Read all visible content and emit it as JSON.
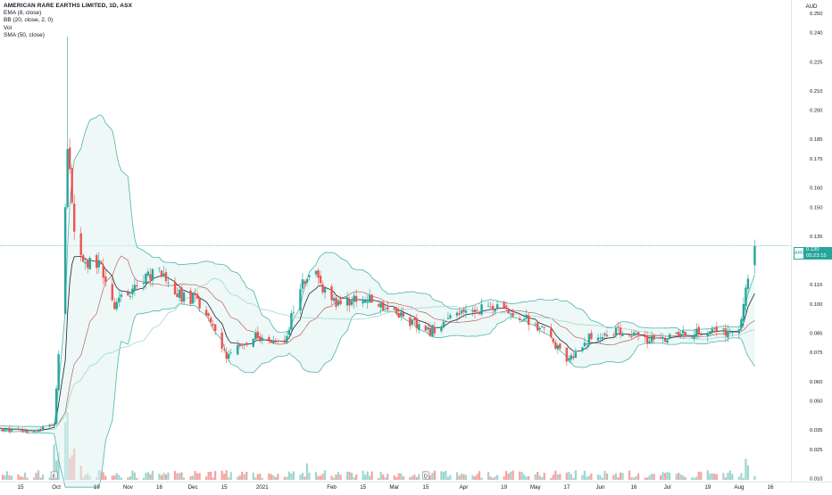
{
  "legend": {
    "title": "AMERICAN RARE EARTHS LIMITED, 1D, ASX",
    "indicators": [
      "EMA (8, close)",
      "BB (20, close, 2, 0)",
      "Vol",
      "SMA (50, close)"
    ]
  },
  "currency": "AUD",
  "current": {
    "ticker": "ARR",
    "price": "0.130",
    "timer": "05:23:15"
  },
  "colors": {
    "up": "#26a69a",
    "down": "#ef5350",
    "volume_up": "#9fd6d0",
    "volume_down": "#f5a3a1",
    "ema": "#1e222d",
    "sma": "#a8dcd4",
    "bb_band": "#4db6ac",
    "bb_basis": "#b24a4a",
    "bb_fill": "#dff3f1"
  },
  "chart_data": {
    "type": "candlestick",
    "title": "AMERICAN RARE EARTHS LIMITED, 1D, ASX",
    "y_axis": {
      "position": "right",
      "range": [
        0.008,
        0.254
      ],
      "ticks": [
        "0.250",
        "0.240",
        "0.225",
        "0.210",
        "0.200",
        "0.185",
        "0.175",
        "0.160",
        "0.150",
        "0.135",
        "0.125",
        "0.110",
        "0.100",
        "0.085",
        "0.075",
        "0.060",
        "0.050",
        "0.035",
        "0.025",
        "0.010"
      ]
    },
    "x_axis": {
      "labels": [
        "15",
        "Oct",
        "19",
        "Nov",
        "16",
        "Dec",
        "15",
        "2021",
        "Feb",
        "15",
        "Mar",
        "15",
        "Apr",
        "19",
        "May",
        "17",
        "Jun",
        "16",
        "Jul",
        "19",
        "Aug",
        "16"
      ],
      "events": [
        {
          "label": "E",
          "at": "Sep 30 2020"
        },
        {
          "label": "D",
          "at": "Mar 15 2021"
        }
      ]
    },
    "last_price": 0.13,
    "price_key_points": [
      [
        "2020-09-01",
        0.036
      ],
      [
        "2020-09-20",
        0.034
      ],
      [
        "2020-09-30",
        0.038
      ],
      [
        "2020-10-02",
        0.072
      ],
      [
        "2020-10-05",
        0.15
      ],
      [
        "2020-10-06",
        0.18
      ],
      [
        "2020-10-09",
        0.14
      ],
      [
        "2020-10-13",
        0.12
      ],
      [
        "2020-10-20",
        0.122
      ],
      [
        "2020-10-27",
        0.1
      ],
      [
        "2020-11-03",
        0.107
      ],
      [
        "2020-11-10",
        0.114
      ],
      [
        "2020-11-16",
        0.12
      ],
      [
        "2020-11-24",
        0.105
      ],
      [
        "2020-12-03",
        0.102
      ],
      [
        "2020-12-09",
        0.09
      ],
      [
        "2020-12-16",
        0.072
      ],
      [
        "2020-12-28",
        0.083
      ],
      [
        "2021-01-11",
        0.08
      ],
      [
        "2021-01-18",
        0.11
      ],
      [
        "2021-01-25",
        0.114
      ],
      [
        "2021-02-01",
        0.1
      ],
      [
        "2021-02-15",
        0.103
      ],
      [
        "2021-03-01",
        0.097
      ],
      [
        "2021-03-15",
        0.085
      ],
      [
        "2021-03-29",
        0.094
      ],
      [
        "2021-04-12",
        0.099
      ],
      [
        "2021-04-26",
        0.094
      ],
      [
        "2021-05-10",
        0.083
      ],
      [
        "2021-05-17",
        0.069
      ],
      [
        "2021-05-26",
        0.082
      ],
      [
        "2021-06-09",
        0.086
      ],
      [
        "2021-06-23",
        0.081
      ],
      [
        "2021-07-07",
        0.084
      ],
      [
        "2021-07-21",
        0.086
      ],
      [
        "2021-08-02",
        0.085
      ],
      [
        "2021-08-05",
        0.11
      ],
      [
        "2021-08-09",
        0.13
      ]
    ],
    "volume_peaks": [
      [
        "2020-10-05",
        "high"
      ],
      [
        "2020-10-06",
        "high"
      ],
      [
        "2020-10-07",
        "medium"
      ],
      [
        "2021-01-21",
        "medium"
      ],
      [
        "2021-08-05",
        "medium"
      ],
      [
        "2021-08-06",
        "medium"
      ]
    ]
  }
}
